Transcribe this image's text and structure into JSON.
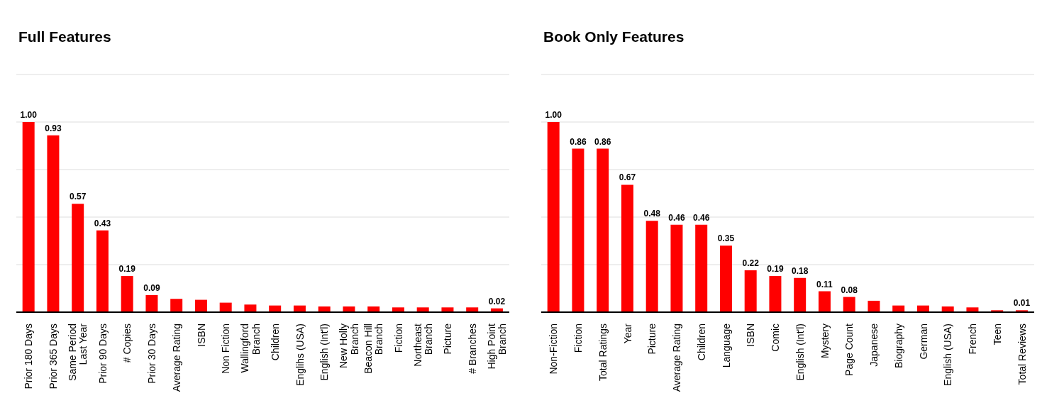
{
  "chart_data": [
    {
      "type": "bar",
      "title": "Full Features",
      "categories": [
        "Prior 180 Days",
        "Prior 365 Days",
        "Same Period\nLast Year",
        "Prior 90 Days",
        "# Copies",
        "Prior 30 Days",
        "Average Rating",
        "ISBN",
        "Non Fiction",
        "Wallingford\nBranch",
        "Children",
        "Englihs (USA)",
        "English (Int'l)",
        "New Holly\nBranch",
        "Beacon Hill\nBranch",
        "Fiction",
        "Northeast\nBranch",
        "Picture",
        "# Branches",
        "High Point\nBranch"
      ],
      "values": [
        1.0,
        0.93,
        0.57,
        0.43,
        0.19,
        0.09,
        0.07,
        0.065,
        0.05,
        0.04,
        0.035,
        0.035,
        0.03,
        0.03,
        0.03,
        0.025,
        0.025,
        0.025,
        0.025,
        0.02
      ],
      "value_labels": [
        "1.00",
        "0.93",
        "0.57",
        "0.43",
        "0.19",
        "0.09",
        null,
        null,
        null,
        null,
        null,
        null,
        null,
        null,
        null,
        null,
        null,
        null,
        null,
        "0.02"
      ],
      "color": "#ff0000",
      "ylim": [
        0,
        1.25
      ],
      "grid": "y",
      "tick_labels": "x"
    },
    {
      "type": "bar",
      "title": "Book Only Features",
      "categories": [
        "Non-Fiction",
        "Fiction",
        "Total Ratings",
        "Year",
        "Picture",
        "Average Rating",
        "Children",
        "Language",
        "ISBN",
        "Comic",
        "English (Int'l)",
        "Mystery",
        "Page Count",
        "Japanese",
        "Biography",
        "German",
        "English (USA)",
        "French",
        "Teen",
        "Total Reviews"
      ],
      "values": [
        1.0,
        0.86,
        0.86,
        0.67,
        0.48,
        0.46,
        0.46,
        0.35,
        0.22,
        0.19,
        0.18,
        0.11,
        0.08,
        0.06,
        0.035,
        0.035,
        0.03,
        0.025,
        0.01,
        0.01
      ],
      "value_labels": [
        "1.00",
        "0.86",
        "0.86",
        "0.67",
        "0.48",
        "0.46",
        "0.46",
        "0.35",
        "0.22",
        "0.19",
        "0.18",
        "0.11",
        "0.08",
        null,
        null,
        null,
        null,
        null,
        null,
        "0.01"
      ],
      "color": "#ff0000",
      "ylim": [
        0,
        1.25
      ],
      "grid": "y",
      "tick_labels": "x"
    }
  ]
}
